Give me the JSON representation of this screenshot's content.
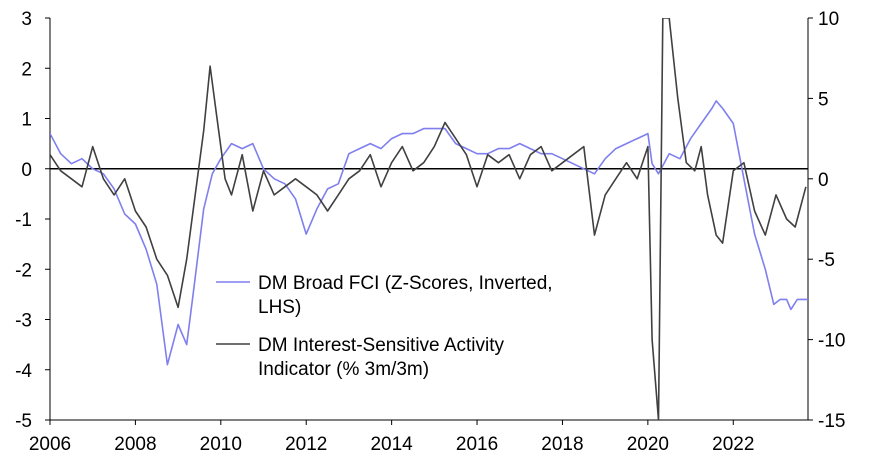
{
  "chart_data": {
    "type": "line",
    "title": "",
    "xlabel": "",
    "ylabel_left": "",
    "ylabel_right": "",
    "x_range": [
      2006,
      2023.75
    ],
    "x_ticks": [
      "2006",
      "2008",
      "2010",
      "2012",
      "2014",
      "2016",
      "2018",
      "2020",
      "2022"
    ],
    "y_left": {
      "range": [
        -5,
        3
      ],
      "ticks": [
        "3",
        "2",
        "1",
        "0",
        "-1",
        "-2",
        "-3",
        "-4",
        "-5"
      ]
    },
    "y_right": {
      "range": [
        -15,
        10
      ],
      "ticks": [
        "10",
        "5",
        "0",
        "-5",
        "-10",
        "-15"
      ]
    },
    "zero_line": true,
    "grid": false,
    "legend_position": "bottom-center",
    "series": [
      {
        "name": "DM Broad FCI (Z-Scores, Inverted, LHS)",
        "legend_lines": [
          "DM Broad FCI (Z-Scores, Inverted,",
          "LHS)"
        ],
        "axis": "left",
        "color": "#7f7fef",
        "points": [
          [
            2006.0,
            0.7
          ],
          [
            2006.25,
            0.3
          ],
          [
            2006.5,
            0.1
          ],
          [
            2006.75,
            0.2
          ],
          [
            2007.0,
            0.0
          ],
          [
            2007.25,
            -0.1
          ],
          [
            2007.5,
            -0.4
          ],
          [
            2007.75,
            -0.9
          ],
          [
            2008.0,
            -1.1
          ],
          [
            2008.25,
            -1.6
          ],
          [
            2008.5,
            -2.3
          ],
          [
            2008.75,
            -3.9
          ],
          [
            2009.0,
            -3.1
          ],
          [
            2009.2,
            -3.5
          ],
          [
            2009.35,
            -2.5
          ],
          [
            2009.6,
            -0.8
          ],
          [
            2009.8,
            -0.1
          ],
          [
            2010.0,
            0.2
          ],
          [
            2010.25,
            0.5
          ],
          [
            2010.5,
            0.4
          ],
          [
            2010.75,
            0.5
          ],
          [
            2011.0,
            0.0
          ],
          [
            2011.25,
            -0.2
          ],
          [
            2011.5,
            -0.3
          ],
          [
            2011.75,
            -0.6
          ],
          [
            2012.0,
            -1.3
          ],
          [
            2012.25,
            -0.8
          ],
          [
            2012.5,
            -0.4
          ],
          [
            2012.75,
            -0.3
          ],
          [
            2013.0,
            0.3
          ],
          [
            2013.25,
            0.4
          ],
          [
            2013.5,
            0.5
          ],
          [
            2013.75,
            0.4
          ],
          [
            2014.0,
            0.6
          ],
          [
            2014.25,
            0.7
          ],
          [
            2014.5,
            0.7
          ],
          [
            2014.75,
            0.8
          ],
          [
            2015.0,
            0.8
          ],
          [
            2015.25,
            0.8
          ],
          [
            2015.5,
            0.5
          ],
          [
            2015.75,
            0.4
          ],
          [
            2016.0,
            0.3
          ],
          [
            2016.25,
            0.3
          ],
          [
            2016.5,
            0.4
          ],
          [
            2016.75,
            0.4
          ],
          [
            2017.0,
            0.5
          ],
          [
            2017.25,
            0.4
          ],
          [
            2017.5,
            0.3
          ],
          [
            2017.75,
            0.3
          ],
          [
            2018.0,
            0.2
          ],
          [
            2018.25,
            0.1
          ],
          [
            2018.5,
            0.0
          ],
          [
            2018.75,
            -0.1
          ],
          [
            2019.0,
            0.2
          ],
          [
            2019.25,
            0.4
          ],
          [
            2019.5,
            0.5
          ],
          [
            2019.75,
            0.6
          ],
          [
            2020.0,
            0.7
          ],
          [
            2020.1,
            0.1
          ],
          [
            2020.25,
            -0.1
          ],
          [
            2020.5,
            0.3
          ],
          [
            2020.75,
            0.2
          ],
          [
            2021.0,
            0.6
          ],
          [
            2021.25,
            0.9
          ],
          [
            2021.5,
            1.2
          ],
          [
            2021.6,
            1.35
          ],
          [
            2021.75,
            1.2
          ],
          [
            2022.0,
            0.9
          ],
          [
            2022.25,
            -0.2
          ],
          [
            2022.5,
            -1.3
          ],
          [
            2022.75,
            -2.0
          ],
          [
            2022.95,
            -2.7
          ],
          [
            2023.1,
            -2.6
          ],
          [
            2023.25,
            -2.6
          ],
          [
            2023.35,
            -2.8
          ],
          [
            2023.5,
            -2.6
          ],
          [
            2023.75,
            -2.6
          ]
        ]
      },
      {
        "name": "DM Interest-Sensitive Activity Indicator (% 3m/3m)",
        "legend_lines": [
          "DM Interest-Sensitive Activity",
          "Indicator (% 3m/3m)"
        ],
        "axis": "right",
        "color": "#404040",
        "points": [
          [
            2006.0,
            1.5
          ],
          [
            2006.25,
            0.5
          ],
          [
            2006.5,
            0.0
          ],
          [
            2006.75,
            -0.5
          ],
          [
            2007.0,
            2.0
          ],
          [
            2007.25,
            0.0
          ],
          [
            2007.5,
            -1.0
          ],
          [
            2007.75,
            0.0
          ],
          [
            2008.0,
            -2.0
          ],
          [
            2008.25,
            -3.0
          ],
          [
            2008.5,
            -5.0
          ],
          [
            2008.75,
            -6.0
          ],
          [
            2009.0,
            -8.0
          ],
          [
            2009.2,
            -5.0
          ],
          [
            2009.4,
            -1.0
          ],
          [
            2009.6,
            3.0
          ],
          [
            2009.75,
            7.0
          ],
          [
            2009.9,
            4.0
          ],
          [
            2010.1,
            0.0
          ],
          [
            2010.25,
            -1.0
          ],
          [
            2010.5,
            1.5
          ],
          [
            2010.75,
            -2.0
          ],
          [
            2011.0,
            0.5
          ],
          [
            2011.25,
            -1.0
          ],
          [
            2011.5,
            -0.5
          ],
          [
            2011.75,
            0.0
          ],
          [
            2012.0,
            -0.5
          ],
          [
            2012.25,
            -1.0
          ],
          [
            2012.5,
            -2.0
          ],
          [
            2012.75,
            -1.0
          ],
          [
            2013.0,
            0.0
          ],
          [
            2013.25,
            0.5
          ],
          [
            2013.5,
            1.5
          ],
          [
            2013.75,
            -0.5
          ],
          [
            2014.0,
            1.0
          ],
          [
            2014.25,
            2.0
          ],
          [
            2014.5,
            0.5
          ],
          [
            2014.75,
            1.0
          ],
          [
            2015.0,
            2.0
          ],
          [
            2015.25,
            3.5
          ],
          [
            2015.5,
            2.5
          ],
          [
            2015.75,
            1.5
          ],
          [
            2016.0,
            -0.5
          ],
          [
            2016.25,
            1.5
          ],
          [
            2016.5,
            1.0
          ],
          [
            2016.75,
            1.5
          ],
          [
            2017.0,
            0.0
          ],
          [
            2017.25,
            1.5
          ],
          [
            2017.5,
            2.0
          ],
          [
            2017.75,
            0.5
          ],
          [
            2018.0,
            1.0
          ],
          [
            2018.25,
            1.5
          ],
          [
            2018.5,
            2.0
          ],
          [
            2018.75,
            -3.5
          ],
          [
            2019.0,
            -1.0
          ],
          [
            2019.25,
            0.0
          ],
          [
            2019.5,
            1.0
          ],
          [
            2019.75,
            0.0
          ],
          [
            2020.0,
            2.0
          ],
          [
            2020.1,
            -10.0
          ],
          [
            2020.25,
            -15.0
          ],
          [
            2020.35,
            10.0
          ],
          [
            2020.5,
            10.0
          ],
          [
            2020.7,
            5.0
          ],
          [
            2020.9,
            1.0
          ],
          [
            2021.1,
            0.5
          ],
          [
            2021.25,
            2.0
          ],
          [
            2021.4,
            -1.0
          ],
          [
            2021.6,
            -3.5
          ],
          [
            2021.75,
            -4.0
          ],
          [
            2022.0,
            0.5
          ],
          [
            2022.25,
            1.0
          ],
          [
            2022.5,
            -2.0
          ],
          [
            2022.75,
            -3.5
          ],
          [
            2023.0,
            -1.0
          ],
          [
            2023.25,
            -2.5
          ],
          [
            2023.45,
            -3.0
          ],
          [
            2023.6,
            -1.5
          ],
          [
            2023.7,
            -0.5
          ]
        ]
      }
    ]
  }
}
